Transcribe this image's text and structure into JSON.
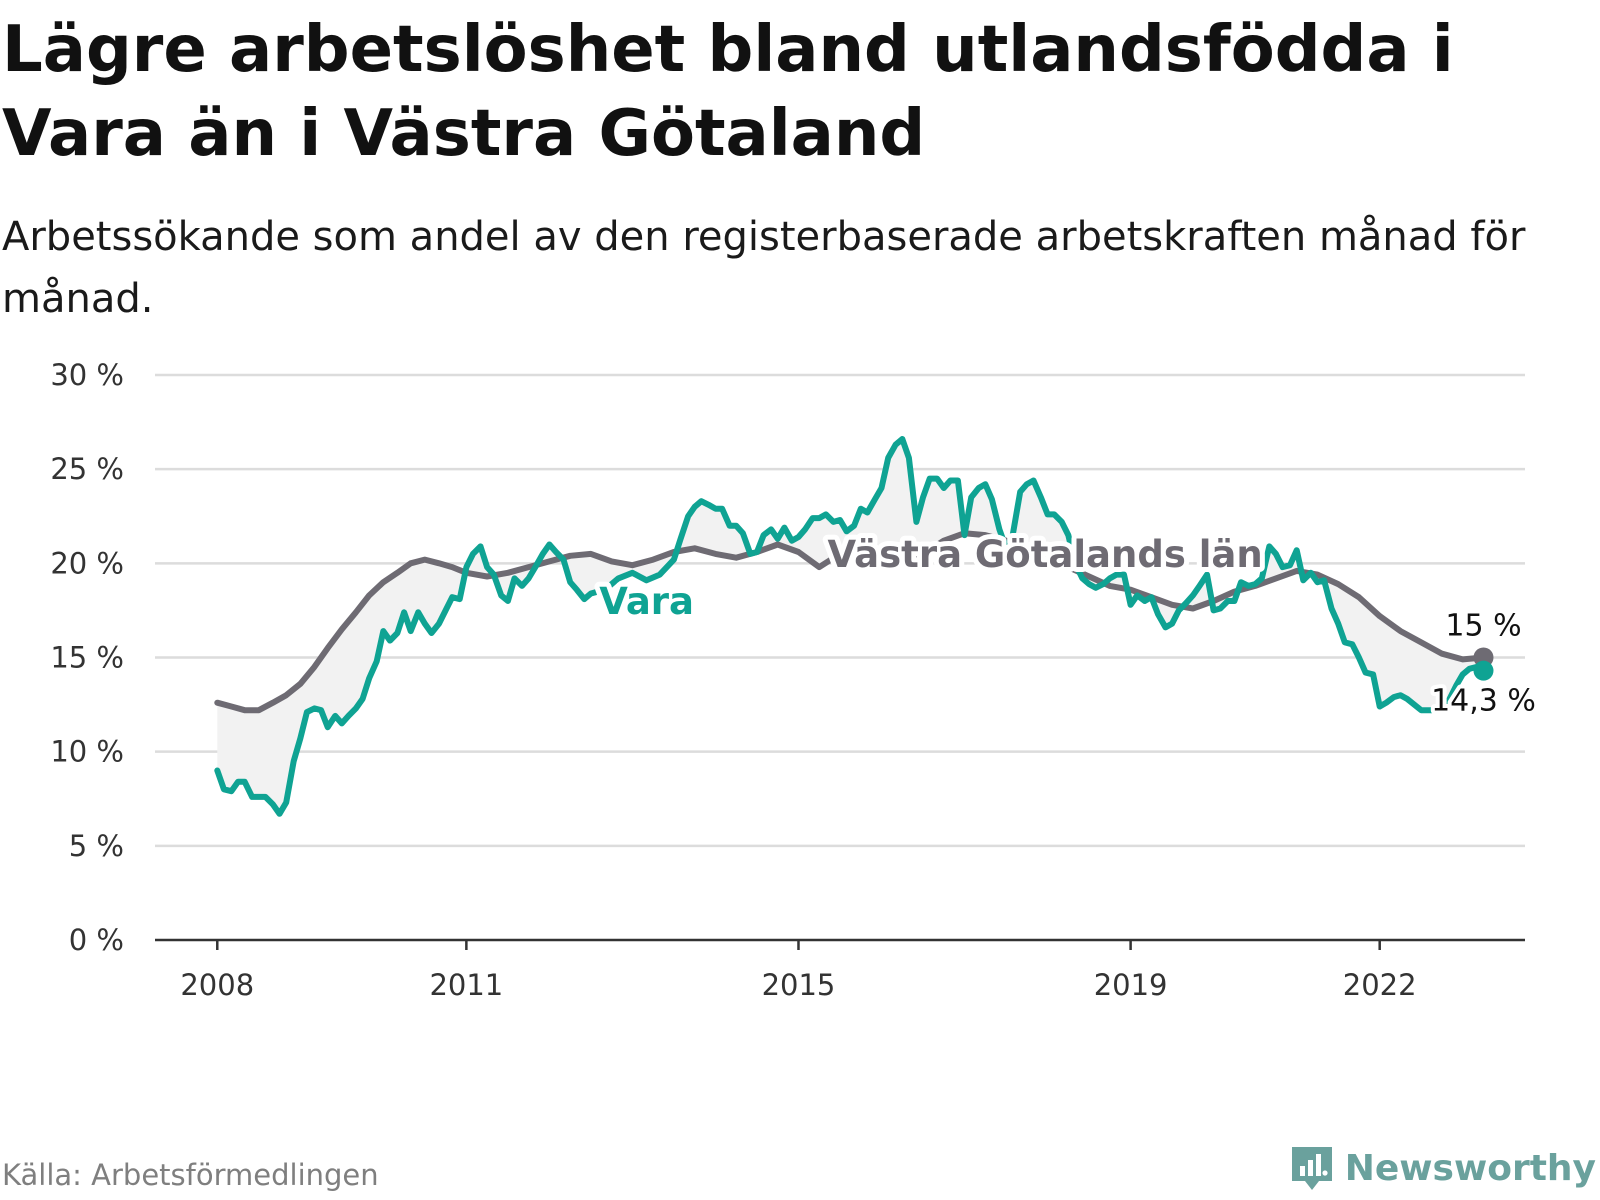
{
  "header": {
    "title": "Lägre arbetslöshet bland utlandsfödda i Vara än i Västra Götaland",
    "subtitle": "Arbetssökande som andel av den registerbaserade arbetskraften månad för månad."
  },
  "footer": {
    "source": "Källa: Arbetsförmedlingen",
    "brand": "Newsworthy"
  },
  "colors": {
    "region": "#6e6b73",
    "municipality": "#0fa393",
    "grid": "#dcdcdc",
    "band": "#f2f2f2",
    "axis": "#333333"
  },
  "chart_data": {
    "type": "line",
    "title": "Lägre arbetslöshet bland utlandsfödda i Vara än i Västra Götaland",
    "xlabel": "",
    "ylabel": "",
    "ylim": [
      0,
      30
    ],
    "xlim": [
      2007.25,
      2023.75
    ],
    "y_ticks": [
      0,
      5,
      10,
      15,
      20,
      25,
      30
    ],
    "y_tick_labels": [
      "0 %",
      "5 %",
      "10 %",
      "15 %",
      "20 %",
      "25 %",
      "30 %"
    ],
    "x_tick_positions": [
      2008,
      2011,
      2015,
      2019,
      2022
    ],
    "x_tick_labels": [
      "2008",
      "2011",
      "2015",
      "2019",
      "2022"
    ],
    "grid": true,
    "series": [
      {
        "name": "Västra Götalands län",
        "label": "Västra Götalands län",
        "end_label": "15 %",
        "points": [
          [
            2008.0,
            12.6
          ],
          [
            2008.17,
            12.4
          ],
          [
            2008.33,
            12.2
          ],
          [
            2008.5,
            12.2
          ],
          [
            2008.67,
            12.6
          ],
          [
            2008.83,
            13.0
          ],
          [
            2009.0,
            13.6
          ],
          [
            2009.17,
            14.5
          ],
          [
            2009.33,
            15.5
          ],
          [
            2009.5,
            16.5
          ],
          [
            2009.67,
            17.4
          ],
          [
            2009.83,
            18.3
          ],
          [
            2010.0,
            19.0
          ],
          [
            2010.17,
            19.5
          ],
          [
            2010.33,
            20.0
          ],
          [
            2010.5,
            20.2
          ],
          [
            2010.67,
            20.0
          ],
          [
            2010.83,
            19.8
          ],
          [
            2011.0,
            19.5
          ],
          [
            2011.25,
            19.3
          ],
          [
            2011.5,
            19.5
          ],
          [
            2011.75,
            19.8
          ],
          [
            2012.0,
            20.1
          ],
          [
            2012.25,
            20.4
          ],
          [
            2012.5,
            20.5
          ],
          [
            2012.75,
            20.1
          ],
          [
            2013.0,
            19.9
          ],
          [
            2013.25,
            20.2
          ],
          [
            2013.5,
            20.6
          ],
          [
            2013.75,
            20.8
          ],
          [
            2014.0,
            20.5
          ],
          [
            2014.25,
            20.3
          ],
          [
            2014.5,
            20.6
          ],
          [
            2014.75,
            21.0
          ],
          [
            2015.0,
            20.6
          ],
          [
            2015.25,
            19.8
          ],
          [
            2015.5,
            20.5
          ],
          [
            2015.75,
            20.8
          ],
          [
            2016.0,
            20.4
          ],
          [
            2016.25,
            20.2
          ],
          [
            2016.5,
            20.5
          ],
          [
            2016.75,
            21.2
          ],
          [
            2017.0,
            21.6
          ],
          [
            2017.25,
            21.5
          ],
          [
            2017.5,
            21.2
          ],
          [
            2017.75,
            20.6
          ],
          [
            2018.0,
            20.2
          ],
          [
            2018.25,
            19.8
          ],
          [
            2018.5,
            19.3
          ],
          [
            2018.75,
            18.8
          ],
          [
            2019.0,
            18.6
          ],
          [
            2019.25,
            18.2
          ],
          [
            2019.5,
            17.8
          ],
          [
            2019.75,
            17.6
          ],
          [
            2020.0,
            18.0
          ],
          [
            2020.25,
            18.5
          ],
          [
            2020.5,
            18.8
          ],
          [
            2020.75,
            19.2
          ],
          [
            2021.0,
            19.6
          ],
          [
            2021.25,
            19.4
          ],
          [
            2021.5,
            18.9
          ],
          [
            2021.75,
            18.2
          ],
          [
            2022.0,
            17.2
          ],
          [
            2022.25,
            16.4
          ],
          [
            2022.5,
            15.8
          ],
          [
            2022.75,
            15.2
          ],
          [
            2023.0,
            14.9
          ],
          [
            2023.25,
            15.0
          ]
        ]
      },
      {
        "name": "Vara",
        "label": "Vara",
        "end_label": "14,3 %",
        "points": [
          [
            2008.0,
            9.0
          ],
          [
            2008.08,
            8.0
          ],
          [
            2008.17,
            7.9
          ],
          [
            2008.25,
            8.4
          ],
          [
            2008.33,
            8.4
          ],
          [
            2008.42,
            7.6
          ],
          [
            2008.58,
            7.6
          ],
          [
            2008.67,
            7.2
          ],
          [
            2008.75,
            6.7
          ],
          [
            2008.83,
            7.3
          ],
          [
            2008.92,
            9.5
          ],
          [
            2009.0,
            10.7
          ],
          [
            2009.08,
            12.1
          ],
          [
            2009.17,
            12.3
          ],
          [
            2009.25,
            12.2
          ],
          [
            2009.33,
            11.3
          ],
          [
            2009.42,
            11.9
          ],
          [
            2009.5,
            11.5
          ],
          [
            2009.58,
            11.9
          ],
          [
            2009.67,
            12.3
          ],
          [
            2009.75,
            12.8
          ],
          [
            2009.83,
            13.9
          ],
          [
            2009.92,
            14.8
          ],
          [
            2010.0,
            16.4
          ],
          [
            2010.08,
            15.9
          ],
          [
            2010.17,
            16.3
          ],
          [
            2010.25,
            17.4
          ],
          [
            2010.33,
            16.4
          ],
          [
            2010.42,
            17.4
          ],
          [
            2010.5,
            16.8
          ],
          [
            2010.58,
            16.3
          ],
          [
            2010.67,
            16.8
          ],
          [
            2010.75,
            17.5
          ],
          [
            2010.83,
            18.2
          ],
          [
            2010.92,
            18.1
          ],
          [
            2011.0,
            19.8
          ],
          [
            2011.08,
            20.5
          ],
          [
            2011.17,
            20.9
          ],
          [
            2011.25,
            19.8
          ],
          [
            2011.33,
            19.4
          ],
          [
            2011.42,
            18.3
          ],
          [
            2011.5,
            18.0
          ],
          [
            2011.58,
            19.2
          ],
          [
            2011.67,
            18.8
          ],
          [
            2011.75,
            19.2
          ],
          [
            2011.83,
            19.8
          ],
          [
            2011.92,
            20.5
          ],
          [
            2012.0,
            21.0
          ],
          [
            2012.08,
            20.6
          ],
          [
            2012.17,
            20.2
          ],
          [
            2012.25,
            19.0
          ],
          [
            2012.33,
            18.6
          ],
          [
            2012.42,
            18.1
          ],
          [
            2012.5,
            18.4
          ],
          [
            2012.67,
            18.6
          ],
          [
            2012.83,
            19.2
          ],
          [
            2013.0,
            19.5
          ],
          [
            2013.17,
            19.1
          ],
          [
            2013.33,
            19.4
          ],
          [
            2013.5,
            20.2
          ],
          [
            2013.58,
            21.3
          ],
          [
            2013.67,
            22.5
          ],
          [
            2013.75,
            23.0
          ],
          [
            2013.83,
            23.3
          ],
          [
            2013.92,
            23.1
          ],
          [
            2014.0,
            22.9
          ],
          [
            2014.08,
            22.9
          ],
          [
            2014.17,
            22.0
          ],
          [
            2014.25,
            22.0
          ],
          [
            2014.33,
            21.6
          ],
          [
            2014.42,
            20.5
          ],
          [
            2014.5,
            20.6
          ],
          [
            2014.58,
            21.5
          ],
          [
            2014.67,
            21.8
          ],
          [
            2014.75,
            21.3
          ],
          [
            2014.83,
            21.9
          ],
          [
            2014.92,
            21.2
          ],
          [
            2015.0,
            21.4
          ],
          [
            2015.08,
            21.8
          ],
          [
            2015.17,
            22.4
          ],
          [
            2015.25,
            22.4
          ],
          [
            2015.33,
            22.6
          ],
          [
            2015.42,
            22.2
          ],
          [
            2015.5,
            22.3
          ],
          [
            2015.58,
            21.7
          ],
          [
            2015.67,
            22.0
          ],
          [
            2015.75,
            22.9
          ],
          [
            2015.83,
            22.7
          ],
          [
            2015.92,
            23.4
          ],
          [
            2016.0,
            24.0
          ],
          [
            2016.08,
            25.6
          ],
          [
            2016.17,
            26.3
          ],
          [
            2016.25,
            26.6
          ],
          [
            2016.33,
            25.6
          ],
          [
            2016.42,
            22.2
          ],
          [
            2016.5,
            23.5
          ],
          [
            2016.58,
            24.5
          ],
          [
            2016.67,
            24.5
          ],
          [
            2016.75,
            24.0
          ],
          [
            2016.83,
            24.4
          ],
          [
            2016.92,
            24.4
          ],
          [
            2017.0,
            21.5
          ],
          [
            2017.08,
            23.5
          ],
          [
            2017.17,
            24.0
          ],
          [
            2017.25,
            24.2
          ],
          [
            2017.33,
            23.4
          ],
          [
            2017.42,
            21.8
          ],
          [
            2017.5,
            20.8
          ],
          [
            2017.58,
            21.5
          ],
          [
            2017.67,
            23.8
          ],
          [
            2017.75,
            24.2
          ],
          [
            2017.83,
            24.4
          ],
          [
            2017.92,
            23.5
          ],
          [
            2018.0,
            22.6
          ],
          [
            2018.08,
            22.6
          ],
          [
            2018.17,
            22.2
          ],
          [
            2018.25,
            21.5
          ],
          [
            2018.33,
            20.0
          ],
          [
            2018.42,
            19.2
          ],
          [
            2018.5,
            18.9
          ],
          [
            2018.58,
            18.7
          ],
          [
            2018.67,
            18.9
          ],
          [
            2018.75,
            19.2
          ],
          [
            2018.83,
            19.4
          ],
          [
            2018.92,
            19.4
          ],
          [
            2019.0,
            17.8
          ],
          [
            2019.08,
            18.3
          ],
          [
            2019.17,
            18.0
          ],
          [
            2019.25,
            18.2
          ],
          [
            2019.33,
            17.3
          ],
          [
            2019.42,
            16.6
          ],
          [
            2019.5,
            16.8
          ],
          [
            2019.58,
            17.5
          ],
          [
            2019.67,
            17.9
          ],
          [
            2019.75,
            18.3
          ],
          [
            2019.83,
            18.8
          ],
          [
            2019.92,
            19.4
          ],
          [
            2020.0,
            17.5
          ],
          [
            2020.08,
            17.6
          ],
          [
            2020.17,
            18.0
          ],
          [
            2020.25,
            18.0
          ],
          [
            2020.33,
            19.0
          ],
          [
            2020.42,
            18.8
          ],
          [
            2020.5,
            18.9
          ],
          [
            2020.58,
            19.2
          ],
          [
            2020.67,
            20.9
          ],
          [
            2020.75,
            20.5
          ],
          [
            2020.83,
            19.8
          ],
          [
            2020.92,
            19.9
          ],
          [
            2021.0,
            20.7
          ],
          [
            2021.08,
            19.1
          ],
          [
            2021.17,
            19.5
          ],
          [
            2021.25,
            19.0
          ],
          [
            2021.33,
            19.1
          ],
          [
            2021.42,
            17.6
          ],
          [
            2021.5,
            16.8
          ],
          [
            2021.58,
            15.8
          ],
          [
            2021.67,
            15.7
          ],
          [
            2021.75,
            15.0
          ],
          [
            2021.83,
            14.2
          ],
          [
            2021.92,
            14.1
          ],
          [
            2022.0,
            12.4
          ],
          [
            2022.08,
            12.6
          ],
          [
            2022.17,
            12.9
          ],
          [
            2022.25,
            13.0
          ],
          [
            2022.33,
            12.8
          ],
          [
            2022.5,
            12.2
          ],
          [
            2022.67,
            12.2
          ],
          [
            2022.83,
            12.7
          ],
          [
            2022.92,
            13.5
          ],
          [
            2023.0,
            14.1
          ],
          [
            2023.08,
            14.4
          ],
          [
            2023.17,
            14.5
          ],
          [
            2023.25,
            14.3
          ]
        ]
      }
    ]
  }
}
